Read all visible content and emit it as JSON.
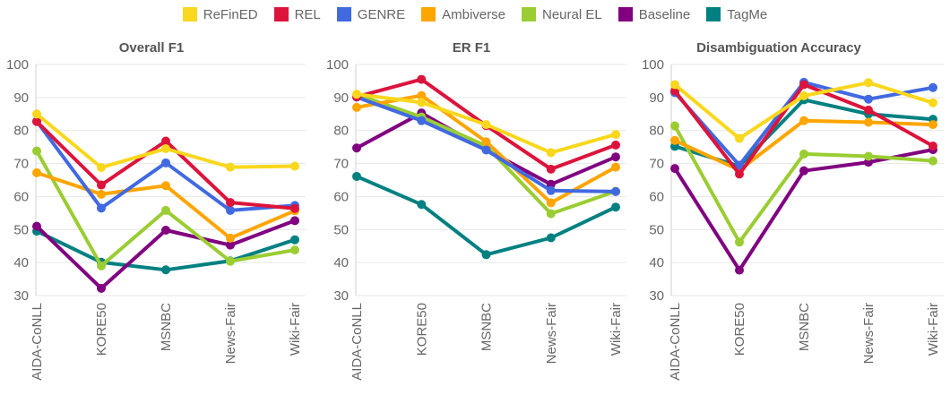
{
  "legend": [
    {
      "name": "ReFinED",
      "color": "#f9d71c"
    },
    {
      "name": "REL",
      "color": "#dc143c"
    },
    {
      "name": "GENRE",
      "color": "#4169e1"
    },
    {
      "name": "Ambiverse",
      "color": "#ffa500"
    },
    {
      "name": "Neural EL",
      "color": "#9acd32"
    },
    {
      "name": "Baseline",
      "color": "#800080"
    },
    {
      "name": "TagMe",
      "color": "#008080"
    }
  ],
  "chart_data": [
    {
      "type": "line",
      "title": "Overall F1",
      "categories": [
        "AIDA-CoNLL",
        "KORE50",
        "MSNBC",
        "News-Fair",
        "Wiki-Fair"
      ],
      "ylim": [
        30,
        100
      ],
      "yticks": [
        30,
        40,
        50,
        60,
        70,
        80,
        90,
        100
      ],
      "series": [
        {
          "name": "ReFinED",
          "values": [
            85,
            68.8,
            74.5,
            68.9,
            69.2
          ]
        },
        {
          "name": "REL",
          "values": [
            82.7,
            63.5,
            76.8,
            58.2,
            56.4
          ]
        },
        {
          "name": "GENRE",
          "values": [
            82.8,
            56.5,
            70.2,
            55.8,
            57.3
          ]
        },
        {
          "name": "Ambiverse",
          "values": [
            67.2,
            60.7,
            63.3,
            47.4,
            55.7
          ]
        },
        {
          "name": "Neural EL",
          "values": [
            73.8,
            39,
            55.8,
            40.4,
            43.8
          ]
        },
        {
          "name": "Baseline",
          "values": [
            51,
            32.2,
            49.8,
            45.3,
            52.7
          ]
        },
        {
          "name": "TagMe",
          "values": [
            49.5,
            40.1,
            37.8,
            40.5,
            46.9
          ]
        }
      ]
    },
    {
      "type": "line",
      "title": "ER F1",
      "categories": [
        "AIDA-CoNLL",
        "KORE50",
        "MSNBC",
        "News-Fair",
        "Wiki-Fair"
      ],
      "ylim": [
        30,
        100
      ],
      "yticks": [
        30,
        40,
        50,
        60,
        70,
        80,
        90,
        100
      ],
      "series": [
        {
          "name": "ReFinED",
          "values": [
            91,
            88.5,
            81.8,
            73.3,
            78.8
          ]
        },
        {
          "name": "REL",
          "values": [
            90.2,
            95.5,
            81.5,
            68.3,
            75.6
          ]
        },
        {
          "name": "GENRE",
          "values": [
            90.1,
            83,
            74.1,
            61.8,
            61.5
          ]
        },
        {
          "name": "Ambiverse",
          "values": [
            87,
            90.6,
            76.6,
            58.1,
            68.9
          ]
        },
        {
          "name": "Neural EL",
          "values": [
            90.9,
            84.1,
            75.3,
            54.8,
            61.6
          ]
        },
        {
          "name": "Baseline",
          "values": [
            74.7,
            85.3,
            74.2,
            63.7,
            72
          ]
        },
        {
          "name": "TagMe",
          "values": [
            66.1,
            57.6,
            42.4,
            47.5,
            56.8
          ]
        }
      ]
    },
    {
      "type": "line",
      "title": "Disambiguation Accuracy",
      "categories": [
        "AIDA-CoNLL",
        "KORE50",
        "MSNBC",
        "News-Fair",
        "Wiki-Fair"
      ],
      "ylim": [
        30,
        100
      ],
      "yticks": [
        30,
        40,
        50,
        60,
        70,
        80,
        90,
        100
      ],
      "series": [
        {
          "name": "ReFinED",
          "values": [
            93.9,
            77.6,
            90.5,
            94.5,
            88.4
          ]
        },
        {
          "name": "REL",
          "values": [
            92,
            66.8,
            93.9,
            86.2,
            75.3
          ]
        },
        {
          "name": "GENRE",
          "values": [
            91.5,
            69.5,
            94.6,
            89.5,
            93
          ]
        },
        {
          "name": "Ambiverse",
          "values": [
            77,
            68,
            83,
            82.5,
            81.8
          ]
        },
        {
          "name": "Neural EL",
          "values": [
            81.4,
            46.2,
            72.9,
            72.2,
            70.8
          ]
        },
        {
          "name": "Baseline",
          "values": [
            68.5,
            37.7,
            67.8,
            70.4,
            74.2
          ]
        },
        {
          "name": "TagMe",
          "values": [
            75.2,
            69.2,
            89.3,
            85,
            83.4
          ]
        }
      ]
    }
  ]
}
